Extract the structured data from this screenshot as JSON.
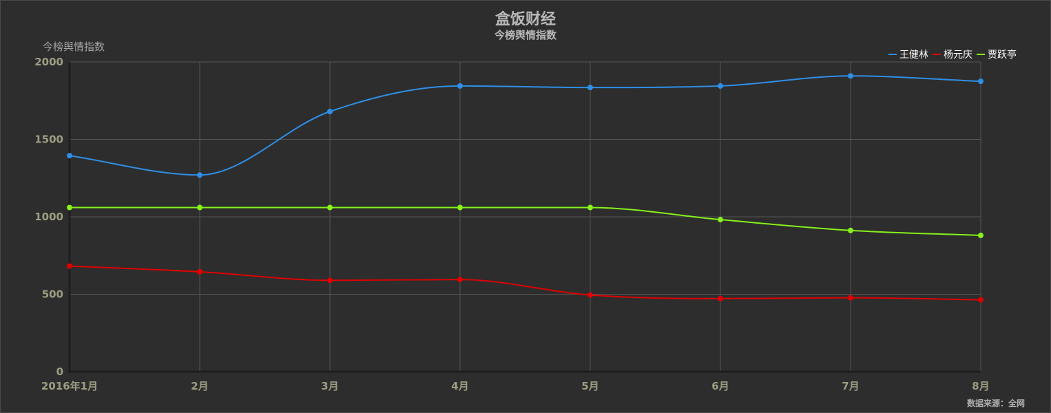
{
  "header": {
    "title": "盒饭财经",
    "subtitle": "今榜舆情指数"
  },
  "source_note": "数据来源：全网",
  "chart_data": {
    "type": "line",
    "title": "盒饭财经",
    "subtitle": "今榜舆情指数",
    "xlabel": "",
    "ylabel": "今榜舆情指数",
    "categories": [
      "2016年1月",
      "2月",
      "3月",
      "4月",
      "5月",
      "6月",
      "7月",
      "8月"
    ],
    "ylim": [
      0,
      2000
    ],
    "yticks": [
      0,
      500,
      1000,
      1500,
      2000
    ],
    "grid": true,
    "smooth": true,
    "legend_position": "top-right",
    "series": [
      {
        "name": "王健林",
        "color": "#2e8fe8",
        "values": [
          1395,
          1270,
          1680,
          1845,
          1835,
          1845,
          1910,
          1875
        ]
      },
      {
        "name": "杨元庆",
        "color": "#e00000",
        "values": [
          682,
          645,
          590,
          595,
          495,
          472,
          477,
          464
        ]
      },
      {
        "name": "贾跃亭",
        "color": "#86f21a",
        "values": [
          1060,
          1060,
          1060,
          1060,
          1060,
          982,
          912,
          880
        ]
      }
    ]
  }
}
